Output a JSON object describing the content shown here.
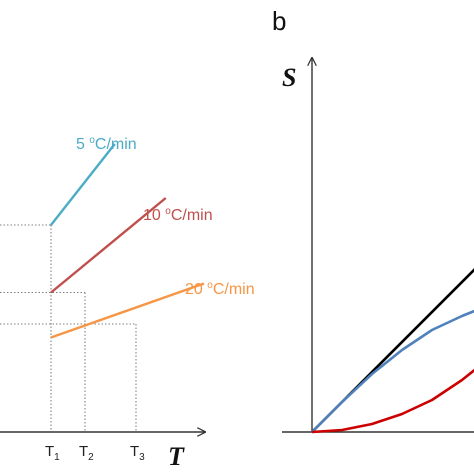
{
  "chart_data": [
    {
      "type": "line",
      "panel": "",
      "xlabel": "T",
      "ylabel": "",
      "x_ticks": [
        {
          "main": "T",
          "sub": "1"
        },
        {
          "main": "T",
          "sub": "2"
        },
        {
          "main": "T",
          "sub": "3"
        }
      ],
      "x_tick_values": [
        0.6,
        1.0,
        1.6
      ],
      "reference_y": [
        2.3,
        1.55,
        1.2
      ],
      "series": [
        {
          "name": "5 °C/min",
          "label_main": "5 ",
          "label_sup": "o",
          "label_rest": "C/min",
          "color": "#4bacc6",
          "x": [
            0.6,
            1.35
          ],
          "y": [
            2.3,
            3.2
          ]
        },
        {
          "name": "10 °C/min",
          "label_main": "10 ",
          "label_sup": "o",
          "label_rest": "C/min",
          "color": "#c0504d",
          "x": [
            0.6,
            1.95
          ],
          "y": [
            1.55,
            2.6
          ]
        },
        {
          "name": "20 °C/min",
          "label_main": "20 ",
          "label_sup": "o",
          "label_rest": "C/min",
          "color": "#f79646",
          "x": [
            0.6,
            2.4
          ],
          "y": [
            1.05,
            1.65
          ]
        }
      ]
    },
    {
      "type": "line",
      "panel": "b",
      "xlabel": "",
      "ylabel": "S",
      "series": [
        {
          "color": "#000000",
          "x": [
            0,
            1.0
          ],
          "y": [
            0,
            1.0
          ]
        },
        {
          "color": "#4f81bd",
          "x": [
            0,
            0.15,
            0.3,
            0.45,
            0.6,
            0.75,
            0.9,
            1.0
          ],
          "y": [
            0,
            0.15,
            0.29,
            0.41,
            0.51,
            0.58,
            0.64,
            0.67
          ]
        },
        {
          "color": "#cc0000",
          "x": [
            0,
            0.15,
            0.3,
            0.45,
            0.6,
            0.75,
            0.9,
            1.0
          ],
          "y": [
            0,
            0.01,
            0.04,
            0.09,
            0.16,
            0.26,
            0.38,
            0.48
          ]
        }
      ]
    }
  ]
}
